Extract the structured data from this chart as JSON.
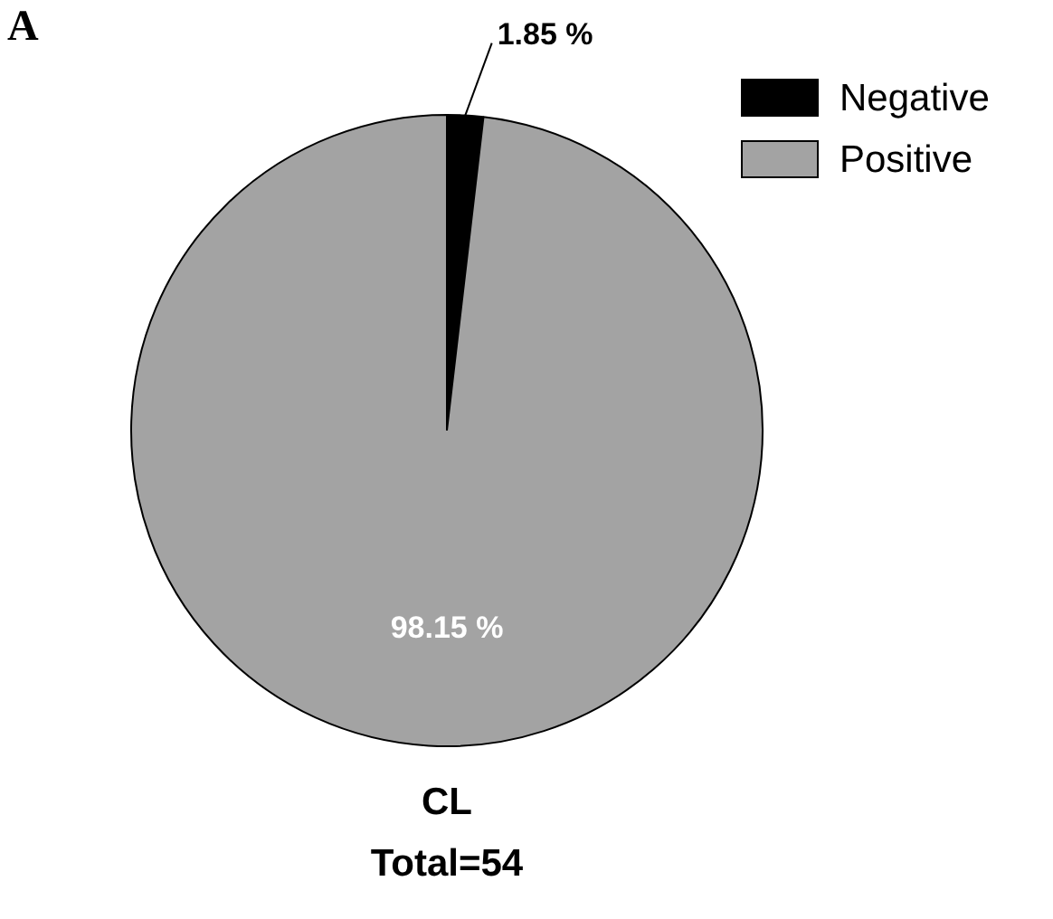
{
  "chart_data": {
    "type": "pie",
    "categories": [
      "Negative",
      "Positive"
    ],
    "values": [
      1.85,
      98.15
    ],
    "colors": [
      "#000000",
      "#a3a3a3"
    ],
    "value_labels": [
      "1.85 %",
      "98.15 %"
    ],
    "legend": "top right",
    "xlabel": "CL",
    "annotations": [
      "A",
      "Total=54"
    ]
  }
}
